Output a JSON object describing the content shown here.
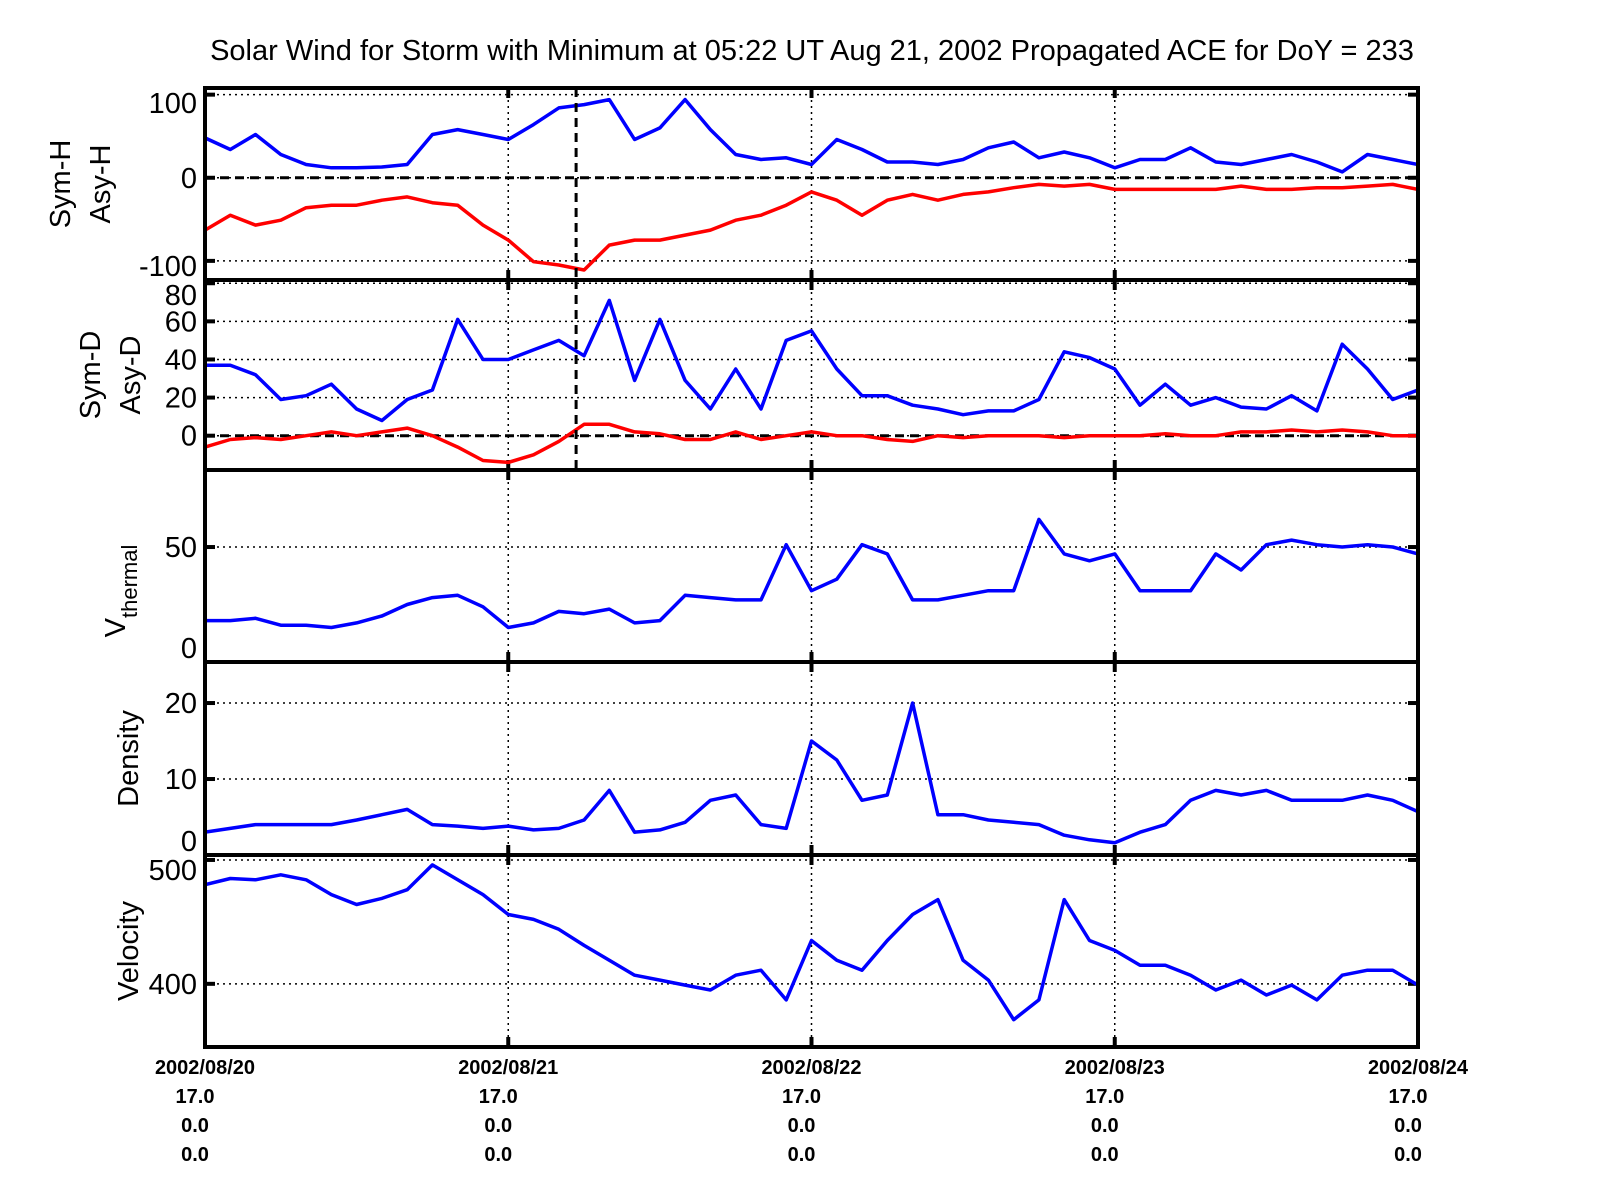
{
  "chart_data": {
    "type": "line",
    "title": "Solar Wind for Storm with Minimum at 05:22 UT Aug 21, 2002  Propagated ACE for DoY = 233",
    "x_unit": "hours since 2002/08/20 00:00 UT",
    "x": [
      0,
      2,
      4,
      6,
      8,
      10,
      12,
      14,
      16,
      18,
      20,
      22,
      24,
      26,
      28,
      30,
      32,
      34,
      36,
      38,
      40,
      42,
      44,
      46,
      48,
      50,
      52,
      54,
      56,
      58,
      60,
      62,
      64,
      66,
      68,
      70,
      72,
      74,
      76,
      78,
      80,
      82,
      84,
      86,
      88,
      90,
      92,
      94,
      96
    ],
    "xlim": [
      0,
      96
    ],
    "event_marker_hour": 29.37,
    "x_ticks": [
      {
        "hour": 0,
        "lines": [
          "2002/08/20",
          "17.0",
          "0.0",
          "0.0"
        ]
      },
      {
        "hour": 24,
        "lines": [
          "2002/08/21",
          "17.0",
          "0.0",
          "0.0"
        ]
      },
      {
        "hour": 48,
        "lines": [
          "2002/08/22",
          "17.0",
          "0.0",
          "0.0"
        ]
      },
      {
        "hour": 72,
        "lines": [
          "2002/08/23",
          "17.0",
          "0.0",
          "0.0"
        ]
      },
      {
        "hour": 96,
        "lines": [
          "2002/08/24",
          "17.0",
          "0.0",
          "0.0"
        ]
      }
    ],
    "grid": true,
    "panels": [
      {
        "ylabel": [
          "Sym-H",
          "Asy-H"
        ],
        "ylim": [
          -123,
          108
        ],
        "yticks": [
          100,
          0,
          -100
        ],
        "zero_line": true,
        "event_line": true,
        "series": [
          {
            "name": "Sym-H",
            "color": "#0000ff",
            "values": [
              48,
              34,
              52,
              28,
              16,
              12,
              12,
              13,
              16,
              52,
              58,
              52,
              46,
              64,
              84,
              88,
              94,
              46,
              60,
              94,
              58,
              28,
              22,
              24,
              16,
              46,
              34,
              19,
              19,
              16,
              22,
              36,
              43,
              24,
              31,
              24,
              12,
              22,
              22,
              36,
              19,
              16,
              22,
              28,
              19,
              7,
              28,
              22,
              16
            ]
          },
          {
            "name": "Asy-H",
            "color": "#ff0000",
            "values": [
              -63,
              -45,
              -57,
              -51,
              -36,
              -33,
              -33,
              -27,
              -23,
              -30,
              -33,
              -57,
              -75,
              -101,
              -105,
              -111,
              -81,
              -75,
              -75,
              -69,
              -63,
              -51,
              -45,
              -33,
              -17,
              -27,
              -45,
              -27,
              -20,
              -27,
              -20,
              -17,
              -12,
              -8,
              -10,
              -8,
              -14,
              -14,
              -14,
              -14,
              -14,
              -10,
              -14,
              -14,
              -12,
              -12,
              -10,
              -8,
              -14
            ]
          }
        ]
      },
      {
        "ylabel": [
          "Sym-D",
          "Asy-D"
        ],
        "ylim": [
          -18,
          81.7
        ],
        "yticks": [
          80,
          60,
          40,
          20,
          0
        ],
        "zero_line": true,
        "event_line": true,
        "series": [
          {
            "name": "Sym-D",
            "color": "#0000ff",
            "values": [
              37,
              37,
              32,
              19,
              21,
              27,
              14,
              8,
              19,
              24,
              61,
              40,
              40,
              45,
              50,
              42,
              71,
              29,
              61,
              29,
              14,
              35,
              14,
              50,
              55,
              35,
              21,
              21,
              16,
              14,
              11,
              13,
              13,
              19,
              44,
              41,
              35,
              16,
              27,
              16,
              20,
              15,
              14,
              21,
              13,
              48,
              35,
              19,
              24
            ]
          },
          {
            "name": "Asy-D",
            "color": "#ff0000",
            "values": [
              -6,
              -2,
              -1,
              -2,
              0,
              2,
              0,
              2,
              4,
              0,
              -6,
              -13,
              -14,
              -10,
              -3,
              6,
              6,
              2,
              1,
              -2,
              -2,
              2,
              -2,
              0,
              2,
              0,
              0,
              -2,
              -3,
              0,
              -1,
              0,
              0,
              0,
              -1,
              0,
              0,
              0,
              1,
              0,
              0,
              2,
              2,
              3,
              2,
              3,
              2,
              0,
              0
            ]
          }
        ]
      },
      {
        "ylabel": [
          "V",
          "thermal"
        ],
        "ylim": [
          0,
          83.5
        ],
        "yticks": [
          50,
          0
        ],
        "series": [
          {
            "name": "Vthermal",
            "color": "#0000ff",
            "values": [
              18,
              18,
              19,
              16,
              16,
              15,
              17,
              20,
              25,
              28,
              29,
              24,
              15,
              17,
              22,
              21,
              23,
              17,
              18,
              29,
              28,
              27,
              27,
              51,
              31,
              36,
              51,
              47,
              27,
              27,
              29,
              31,
              31,
              62,
              47,
              44,
              47,
              31,
              31,
              31,
              47,
              40,
              51,
              53,
              51,
              50,
              51,
              50,
              47
            ]
          }
        ]
      },
      {
        "ylabel": [
          "Density"
        ],
        "ylim": [
          0,
          25.4
        ],
        "yticks": [
          20,
          10,
          0
        ],
        "series": [
          {
            "name": "Density",
            "color": "#0000ff",
            "values": [
              3,
              3.5,
              4,
              4,
              4,
              4,
              4.6,
              5.3,
              6,
              4,
              3.8,
              3.5,
              3.8,
              3.3,
              3.5,
              4.6,
              8.5,
              3,
              3.3,
              4.3,
              7.2,
              7.9,
              4,
              3.5,
              15,
              12.5,
              7.2,
              7.9,
              20,
              5.3,
              5.3,
              4.6,
              4.3,
              4,
              2.6,
              2,
              1.6,
              3,
              4,
              7.2,
              8.5,
              7.9,
              8.5,
              7.2,
              7.2,
              7.2,
              7.9,
              7.2,
              5.7
            ]
          }
        ]
      },
      {
        "ylabel": [
          "Velocity"
        ],
        "ylim": [
          349,
          504
        ],
        "yticks": [
          500,
          400
        ],
        "series": [
          {
            "name": "Velocity",
            "color": "#0000ff",
            "values": [
              480,
              485,
              484,
              488,
              484,
              472,
              464,
              469,
              476,
              496,
              484,
              472,
              456,
              452,
              444,
              431,
              419,
              407,
              403,
              399,
              395,
              407,
              411,
              387,
              435,
              419,
              411,
              435,
              456,
              468,
              419,
              403,
              371,
              387,
              468,
              435,
              427,
              415,
              415,
              407,
              395,
              403,
              391,
              399,
              387,
              407,
              411,
              411,
              399
            ]
          }
        ]
      }
    ]
  }
}
